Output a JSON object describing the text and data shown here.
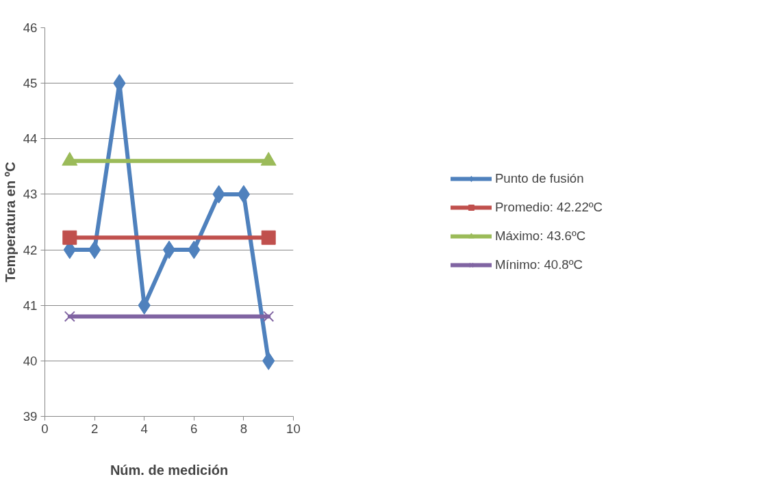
{
  "chart_data": {
    "type": "line",
    "xlabel": "Núm. de medición",
    "ylabel": "Temperatura en ºC",
    "xlim": [
      0,
      10
    ],
    "xticks": [
      0,
      2,
      4,
      6,
      8,
      10
    ],
    "ylim": [
      39,
      46
    ],
    "yticks": [
      39,
      40,
      41,
      42,
      43,
      44,
      45,
      46
    ],
    "grid": "y",
    "legend": "right",
    "line_style": "solid",
    "series": [
      {
        "name": "Punto de fusión",
        "color": "#4f81bd",
        "marker": "diamond",
        "x": [
          1,
          2,
          3,
          4,
          5,
          6,
          7,
          8,
          9
        ],
        "values": [
          42,
          42,
          45,
          41,
          42,
          42,
          43,
          43,
          40
        ]
      },
      {
        "name": "Promedio: 42.22ºC",
        "color": "#c0504d",
        "marker": "square",
        "x": [
          1,
          9
        ],
        "values": [
          42.22,
          42.22
        ]
      },
      {
        "name": "Máximo: 43.6ºC",
        "color": "#9bbb59",
        "marker": "triangle",
        "x": [
          1,
          9
        ],
        "values": [
          43.6,
          43.6
        ]
      },
      {
        "name": "Mínimo: 40.8ºC",
        "color": "#8064a2",
        "marker": "cross",
        "x": [
          1,
          9
        ],
        "values": [
          40.8,
          40.8
        ]
      }
    ]
  }
}
